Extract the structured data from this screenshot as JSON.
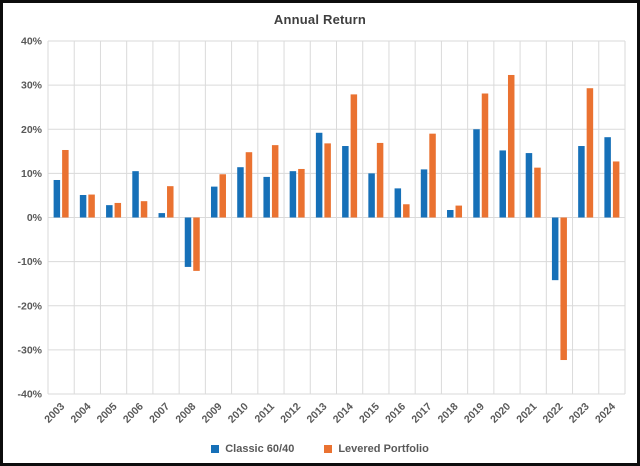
{
  "window": {
    "background": "#ffffff",
    "frame_color": "#0d0d0d"
  },
  "chart_data": {
    "type": "bar",
    "title": "Annual Return",
    "categories": [
      "2003",
      "2004",
      "2005",
      "2006",
      "2007",
      "2008",
      "2009",
      "2010",
      "2011",
      "2012",
      "2013",
      "2014",
      "2015",
      "2016",
      "2017",
      "2018",
      "2019",
      "2020",
      "2021",
      "2022",
      "2023",
      "2024"
    ],
    "series": [
      {
        "name": "Classic 60/40",
        "color": "#1670B8",
        "values": [
          8.5,
          5.1,
          2.8,
          10.5,
          1.0,
          -11.2,
          7.0,
          11.4,
          9.2,
          10.5,
          19.2,
          16.2,
          10.0,
          6.6,
          10.9,
          1.7,
          20.0,
          15.2,
          14.6,
          -14.2,
          16.2,
          18.2
        ]
      },
      {
        "name": "Levered Portfolio",
        "color": "#EA7231",
        "values": [
          15.3,
          5.2,
          3.3,
          3.7,
          7.1,
          -12.1,
          9.8,
          14.8,
          16.4,
          11.0,
          16.8,
          27.9,
          16.9,
          3.0,
          19.0,
          2.7,
          28.1,
          32.3,
          11.3,
          -32.3,
          29.3,
          12.7
        ]
      }
    ],
    "xlabel": "",
    "ylabel": "",
    "ylim": [
      -40,
      40
    ],
    "ytick_step": 10,
    "ytick_labels": [
      "40%",
      "30%",
      "20%",
      "10%",
      "0%",
      "-10%",
      "-20%",
      "-30%",
      "-40%"
    ],
    "grid": true,
    "gridline_color": "#DADADA",
    "axis_label_color": "#595959",
    "title_color": "#3f3f3f",
    "legend_position": "bottom"
  }
}
